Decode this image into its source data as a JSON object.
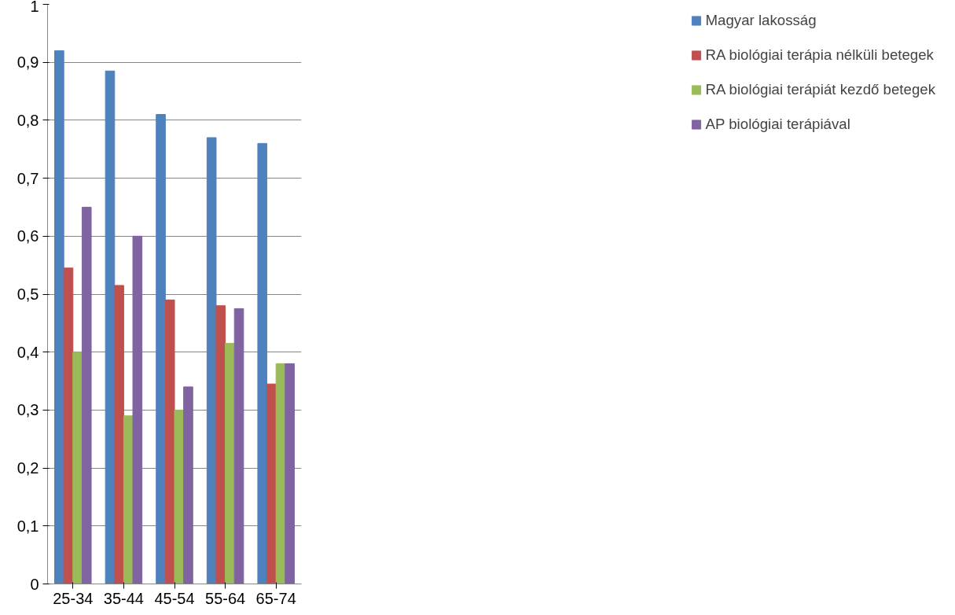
{
  "chart_data": {
    "type": "bar",
    "categories": [
      "25-34",
      "35-44",
      "45-54",
      "55-64",
      "65-74"
    ],
    "series": [
      {
        "name": "Magyar lakosság",
        "color": "#4f81bd",
        "values": [
          0.92,
          0.885,
          0.81,
          0.77,
          0.76
        ]
      },
      {
        "name": "RA biológiai terápia nélküli betegek",
        "color": "#c0504d",
        "values": [
          0.545,
          0.515,
          0.49,
          0.48,
          0.345
        ]
      },
      {
        "name": "RA biológiai terápiát kezdő betegek",
        "color": "#9bbb59",
        "values": [
          0.4,
          0.29,
          0.3,
          0.415,
          0.38
        ]
      },
      {
        "name": "AP biológiai terápiával",
        "color": "#8064a2",
        "values": [
          0.65,
          0.6,
          0.34,
          0.475,
          0.38
        ]
      }
    ],
    "ylim": [
      0,
      1
    ],
    "yticks": [
      0,
      {
        "value": 0.1,
        "label": "0,1"
      },
      {
        "value": 0.2,
        "label": "0,2"
      },
      {
        "value": 0.3,
        "label": "0,3"
      },
      {
        "value": 0.4,
        "label": "0,4"
      },
      {
        "value": 0.5,
        "label": "0,5"
      },
      {
        "value": 0.6,
        "label": "0,6"
      },
      {
        "value": 0.7,
        "label": "0,7"
      },
      {
        "value": 0.8,
        "label": "0,8"
      },
      {
        "value": 0.9,
        "label": "0,9"
      },
      1
    ],
    "grid": "y",
    "legend": "right"
  }
}
